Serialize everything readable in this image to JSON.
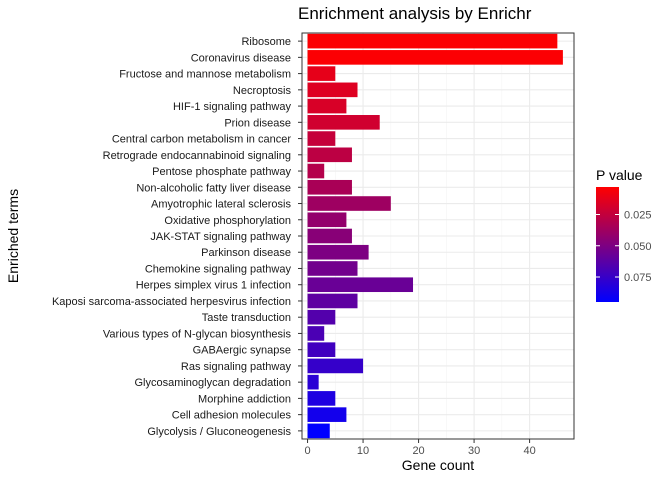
{
  "chart_data": {
    "type": "bar",
    "orientation": "horizontal",
    "title": "Enrichment analysis by Enrichr",
    "xlabel": "Gene count",
    "ylabel": "Enriched terms",
    "xlim": [
      -1,
      48
    ],
    "x_ticks": [
      0,
      10,
      20,
      30,
      40
    ],
    "grid": true,
    "legend": {
      "title": "P value",
      "placement": "right",
      "ticks": [
        0.025,
        0.05,
        0.075
      ],
      "tick_labels": [
        "0.025",
        "0.050",
        "0.075"
      ],
      "range": [
        0.003,
        0.095
      ],
      "color_low_p": "#ff0000",
      "color_high_p": "#0000ff"
    },
    "categories": [
      "Ribosome",
      "Coronavirus disease",
      "Fructose and mannose metabolism",
      "Necroptosis",
      "HIF-1 signaling pathway",
      "Prion disease",
      "Central carbon metabolism in cancer",
      "Retrograde endocannabinoid signaling",
      "Pentose phosphate pathway",
      "Non-alcoholic fatty liver disease",
      "Amyotrophic lateral sclerosis",
      "Oxidative phosphorylation",
      "JAK-STAT signaling pathway",
      "Parkinson disease",
      "Chemokine signaling pathway",
      "Herpes simplex virus 1 infection",
      "Kaposi sarcoma-associated herpesvirus infection",
      "Taste transduction",
      "Various types of N-glycan biosynthesis",
      "GABAergic synapse",
      "Ras signaling pathway",
      "Glycosaminoglycan degradation",
      "Morphine addiction",
      "Cell adhesion molecules",
      "Glycolysis / Gluconeogenesis"
    ],
    "values": [
      45,
      46,
      5,
      9,
      7,
      13,
      5,
      8,
      3,
      8,
      15,
      7,
      8,
      11,
      9,
      19,
      9,
      5,
      3,
      5,
      10,
      2,
      5,
      7,
      4
    ],
    "p_values": [
      0.004,
      0.004,
      0.012,
      0.015,
      0.017,
      0.02,
      0.024,
      0.027,
      0.03,
      0.034,
      0.038,
      0.042,
      0.046,
      0.05,
      0.054,
      0.057,
      0.061,
      0.065,
      0.068,
      0.072,
      0.076,
      0.08,
      0.084,
      0.088,
      0.095
    ]
  }
}
